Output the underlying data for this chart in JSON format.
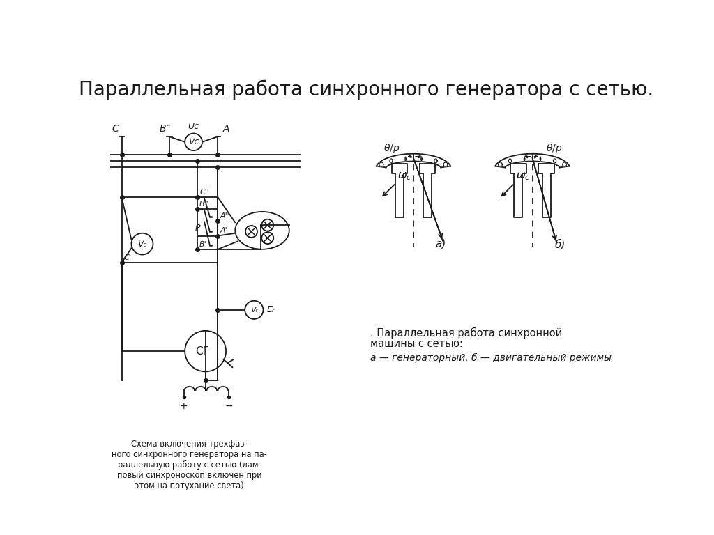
{
  "title": "Параллельная работа синхронного генератора с сетью.",
  "title_fontsize": 20,
  "bg_color": "#ffffff",
  "line_color": "#1a1a1a",
  "caption_left": "Схема включения трехфаз-\nного синхронного генератора на па-\nраллельную работу с сетью (лам-\nповый синхроноскоп включен при\nэтом на потухание света)",
  "caption_right_line1": "Параллельная работа синхронной",
  "caption_right_line2": "машины с сетью:",
  "caption_right_line3": "а — генераторный, б — двигательный режимы",
  "label_a": "а)",
  "label_b": "б)"
}
